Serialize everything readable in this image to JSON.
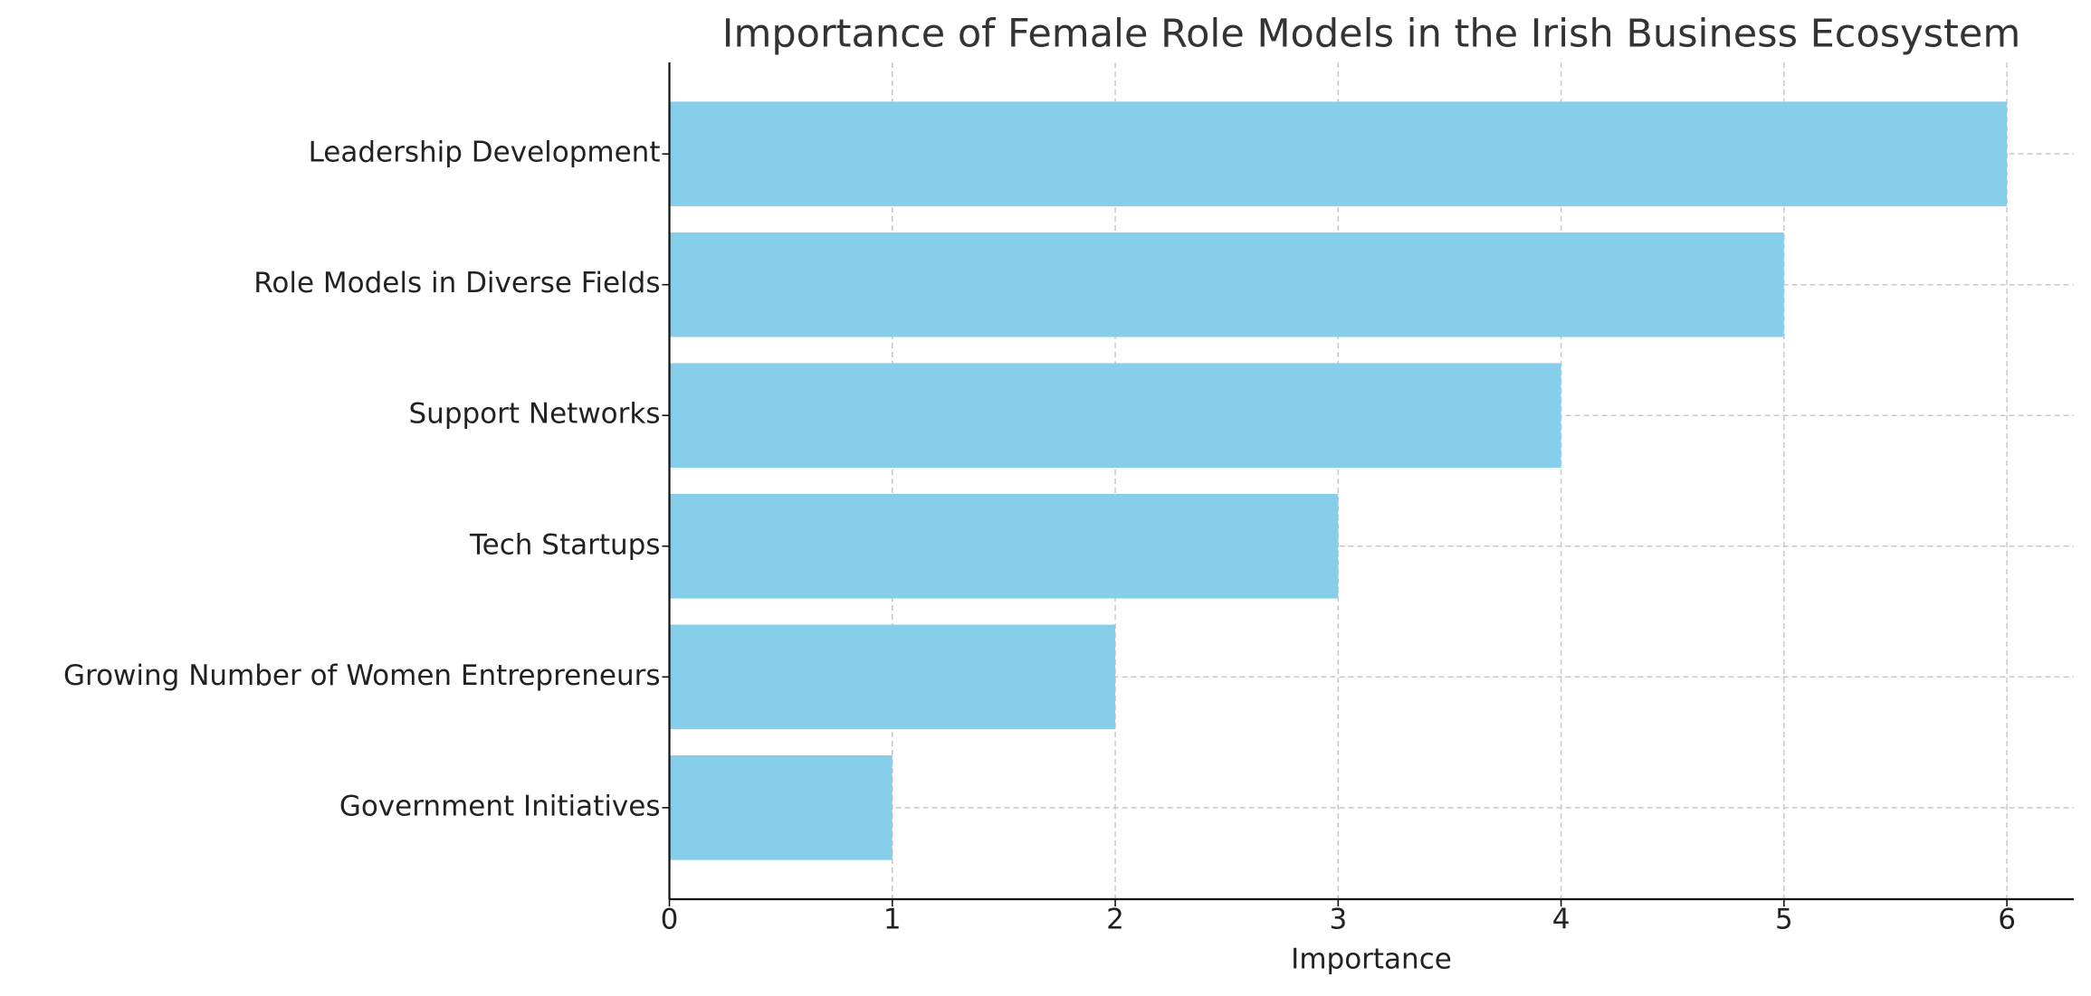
{
  "chart_data": {
    "type": "barh",
    "title": "Importance of Female Role Models in the Irish Business Ecosystem",
    "xlabel": "Importance",
    "categories": [
      "Leadership Development",
      "Role Models in Diverse Fields",
      "Support Networks",
      "Tech Startups",
      "Growing Number of Women Entrepreneurs",
      "Government Initiatives"
    ],
    "values": [
      6,
      5,
      4,
      3,
      2,
      1
    ],
    "color": "#87ceeb",
    "xlim": [
      0,
      6.3
    ],
    "xticks": [
      0,
      1,
      2,
      3,
      4,
      5,
      6
    ],
    "grid": true
  }
}
